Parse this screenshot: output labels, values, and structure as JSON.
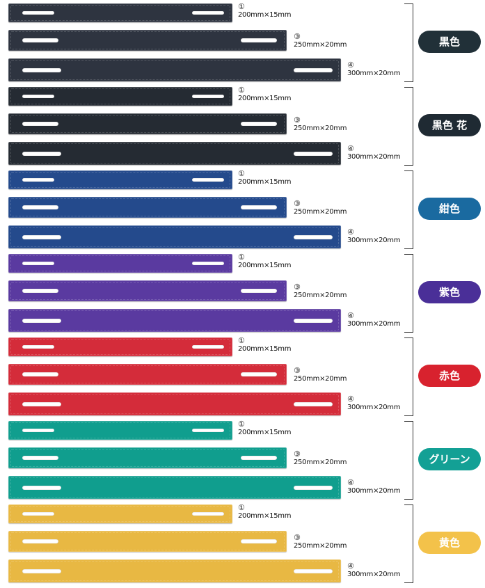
{
  "groups": [
    {
      "color_name": "黒色",
      "strap_color": "#2e3440",
      "pill_color": "#213038",
      "straps": [
        {
          "num": "①",
          "size": "200mm×15mm"
        },
        {
          "num": "③",
          "size": "250mm×20mm"
        },
        {
          "num": "④",
          "size": "300mm×20mm"
        }
      ]
    },
    {
      "color_name": "黒色 花",
      "strap_color": "#252b33",
      "pill_color": "#1f2a33",
      "straps": [
        {
          "num": "①",
          "size": "200mm×15mm"
        },
        {
          "num": "③",
          "size": "250mm×20mm"
        },
        {
          "num": "④",
          "size": "300mm×20mm"
        }
      ]
    },
    {
      "color_name": "紺色",
      "strap_color": "#244a8c",
      "pill_color": "#1a6aa0",
      "straps": [
        {
          "num": "①",
          "size": "200mm×15mm"
        },
        {
          "num": "③",
          "size": "250mm×20mm"
        },
        {
          "num": "④",
          "size": "300mm×20mm"
        }
      ]
    },
    {
      "color_name": "紫色",
      "strap_color": "#5a3aa0",
      "pill_color": "#4a2f98",
      "straps": [
        {
          "num": "①",
          "size": "200mm×15mm"
        },
        {
          "num": "③",
          "size": "250mm×20mm"
        },
        {
          "num": "④",
          "size": "300mm×20mm"
        }
      ]
    },
    {
      "color_name": "赤色",
      "strap_color": "#d42c3a",
      "pill_color": "#d8222e",
      "straps": [
        {
          "num": "①",
          "size": "200mm×15mm"
        },
        {
          "num": "③",
          "size": "250mm×20mm"
        },
        {
          "num": "④",
          "size": "300mm×20mm"
        }
      ]
    },
    {
      "color_name": "グリーン",
      "strap_color": "#109e8e",
      "pill_color": "#13a095",
      "straps": [
        {
          "num": "①",
          "size": "200mm×15mm"
        },
        {
          "num": "③",
          "size": "250mm×20mm"
        },
        {
          "num": "④",
          "size": "300mm×20mm"
        }
      ]
    },
    {
      "color_name": "黄色",
      "strap_color": "#e8b843",
      "pill_color": "#f3c24a",
      "straps": [
        {
          "num": "①",
          "size": "200mm×15mm"
        },
        {
          "num": "③",
          "size": "250mm×20mm"
        },
        {
          "num": "④",
          "size": "300mm×20mm"
        }
      ]
    }
  ]
}
